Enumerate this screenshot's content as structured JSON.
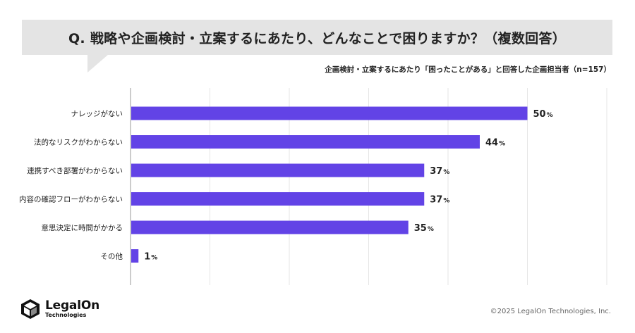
{
  "question": "Q. 戦略や企画検討・立案するにあたり、どんなことで困りますか？（複数回答）",
  "subtitle": "企画検討・立案するにあたり「困ったことがある」と回答した企画担当者（n=157）",
  "chart_data": {
    "type": "bar",
    "orientation": "horizontal",
    "categories": [
      "ナレッジがない",
      "法的なリスクがわからない",
      "連携すべき部署がわからない",
      "内容の確認フローがわからない",
      "意思決定に時間がかかる",
      "その他"
    ],
    "values": [
      50,
      44,
      37,
      37,
      35,
      1
    ],
    "value_suffix": "%",
    "xlim": [
      0,
      60
    ],
    "grid": true,
    "bar_color": "#6243e6"
  },
  "logo": {
    "name": "LegalOn",
    "sub": "Technologies"
  },
  "copyright": "©2025 LegalOn Technologies, Inc."
}
